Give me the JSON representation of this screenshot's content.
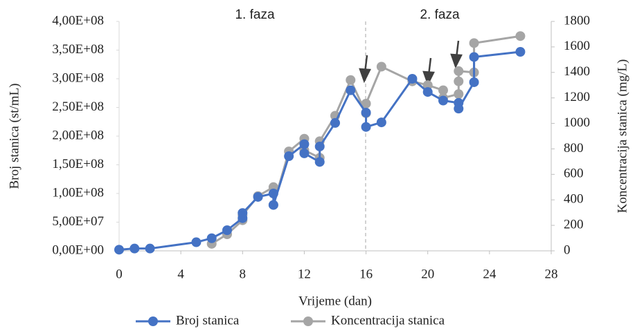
{
  "chart_data": {
    "type": "line",
    "xlabel": "Vrijeme (dan)",
    "ylabel": "Broj stanica (st/mL)",
    "y2label": "Koncentracija stanica (mg/L)",
    "annotations": [
      "1. faza",
      "2. faza"
    ],
    "xlim": [
      0,
      28
    ],
    "xticks": [
      0,
      4,
      8,
      12,
      16,
      20,
      24,
      28
    ],
    "ylim": [
      0,
      400000000
    ],
    "yticks": [
      {
        "value": 0,
        "label": "0,00E+00"
      },
      {
        "value": 50000000,
        "label": "5,00E+07"
      },
      {
        "value": 100000000,
        "label": "1,00E+08"
      },
      {
        "value": 150000000,
        "label": "1,50E+08"
      },
      {
        "value": 200000000,
        "label": "2,00E+08"
      },
      {
        "value": 250000000,
        "label": "2,50E+08"
      },
      {
        "value": 300000000,
        "label": "3,00E+08"
      },
      {
        "value": 350000000,
        "label": "3,50E+08"
      },
      {
        "value": 400000000,
        "label": "4,00E+08"
      }
    ],
    "y2lim": [
      0,
      1800
    ],
    "y2ticks": [
      0,
      200,
      400,
      600,
      800,
      1000,
      1200,
      1400,
      1600,
      1800
    ],
    "grid": false,
    "legend": "bottom",
    "series": [
      {
        "name": "Broj stanica",
        "color": "#4472c4",
        "x": [
          0,
          1,
          2,
          5,
          6,
          7,
          8,
          8,
          9,
          10,
          10,
          11,
          12,
          12,
          13,
          13,
          14,
          15,
          16,
          16,
          17,
          19,
          20,
          21,
          22,
          22,
          23,
          23,
          26
        ],
        "values": [
          2000000,
          4000000,
          4000000,
          15000000,
          22000000,
          36000000,
          57000000,
          66000000,
          94000000,
          100000000,
          80000000,
          165000000,
          186000000,
          170000000,
          155000000,
          182000000,
          223000000,
          280000000,
          241000000,
          216000000,
          224000000,
          300000000,
          277000000,
          262000000,
          258000000,
          248000000,
          294000000,
          338000000,
          347000000
        ]
      },
      {
        "name": "Koncentracija stanica",
        "color": "#a5a5a5",
        "axis": "y2",
        "x": [
          6,
          7,
          8,
          8,
          9,
          10,
          10,
          11,
          12,
          12,
          13,
          13,
          14,
          15,
          16,
          16,
          17,
          19,
          20,
          21,
          21,
          22,
          22,
          22,
          23,
          23,
          26
        ],
        "values": [
          55,
          130,
          240,
          280,
          430,
          500,
          360,
          780,
          880,
          790,
          730,
          860,
          1060,
          1340,
          1080,
          1155,
          1445,
          1330,
          1300,
          1260,
          1200,
          1230,
          1330,
          1410,
          1400,
          1630,
          1685
        ]
      }
    ]
  }
}
